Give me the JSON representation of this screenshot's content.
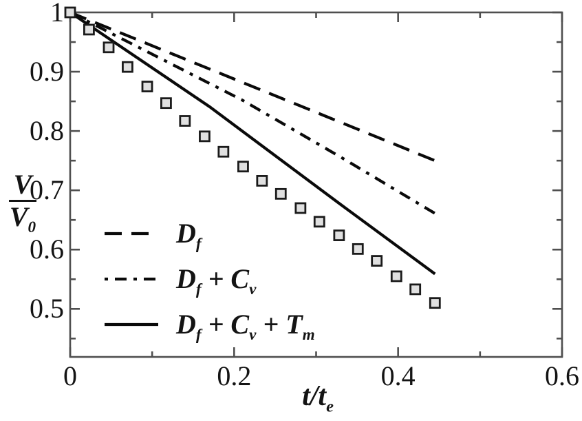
{
  "figure": {
    "background": "#ffffff",
    "frame_color": "#4f4f4f",
    "line_color": "#0a0a0a",
    "text_color": "#141414",
    "marker_fill": "#e0e0e0",
    "marker_stroke": "#1a1a1a"
  },
  "chart_data": {
    "type": "line",
    "title": "",
    "xlabel": "t/t_e",
    "ylabel": {
      "numerator": "V",
      "denominator": "V_0"
    },
    "xlim": [
      0,
      0.6
    ],
    "ylim": [
      0.419,
      1.0
    ],
    "grid": false,
    "legend_position": "inside-left-middle",
    "x_axis": {
      "major_ticks": [
        0,
        0.2,
        0.4,
        0.6
      ],
      "major_labels": [
        "0",
        "0.2",
        "0.4",
        "0.6"
      ],
      "minor_ticks": [
        0.1,
        0.3,
        0.5
      ]
    },
    "y_axis": {
      "major_ticks": [
        1.0,
        0.9,
        0.8,
        0.7,
        0.6,
        0.5
      ],
      "major_labels": [
        "1",
        "0.9",
        "0.8",
        "0.7",
        "0.6",
        "0.5"
      ],
      "minor_ticks": [
        0.95,
        0.85,
        0.75,
        0.65,
        0.55,
        0.45
      ]
    },
    "series": [
      {
        "name": "D_f",
        "style": "dashed",
        "in_legend": true,
        "points": [
          [
            0,
            1.0
          ],
          [
            0.445,
            0.75
          ]
        ]
      },
      {
        "name": "D_f + C_v",
        "style": "dashdot",
        "in_legend": true,
        "points": [
          [
            0,
            1.0
          ],
          [
            0.21,
            0.852
          ],
          [
            0.33,
            0.756
          ],
          [
            0.445,
            0.661
          ]
        ]
      },
      {
        "name": "D_f + C_v + T_m",
        "style": "solid",
        "in_legend": true,
        "points": [
          [
            0,
            1.0
          ],
          [
            0.17,
            0.841
          ],
          [
            0.33,
            0.676
          ],
          [
            0.445,
            0.559
          ]
        ]
      },
      {
        "name": "simulation-data-points",
        "style": "square-markers",
        "in_legend": false,
        "points": [
          [
            0.0,
            1.0
          ],
          [
            0.023,
            0.971
          ],
          [
            0.047,
            0.941
          ],
          [
            0.07,
            0.908
          ],
          [
            0.094,
            0.875
          ],
          [
            0.117,
            0.847
          ],
          [
            0.14,
            0.817
          ],
          [
            0.164,
            0.791
          ],
          [
            0.187,
            0.765
          ],
          [
            0.211,
            0.74
          ],
          [
            0.234,
            0.716
          ],
          [
            0.257,
            0.694
          ],
          [
            0.281,
            0.67
          ],
          [
            0.304,
            0.647
          ],
          [
            0.328,
            0.624
          ],
          [
            0.351,
            0.601
          ],
          [
            0.374,
            0.581
          ],
          [
            0.398,
            0.555
          ],
          [
            0.421,
            0.533
          ],
          [
            0.445,
            0.51
          ]
        ]
      }
    ]
  }
}
